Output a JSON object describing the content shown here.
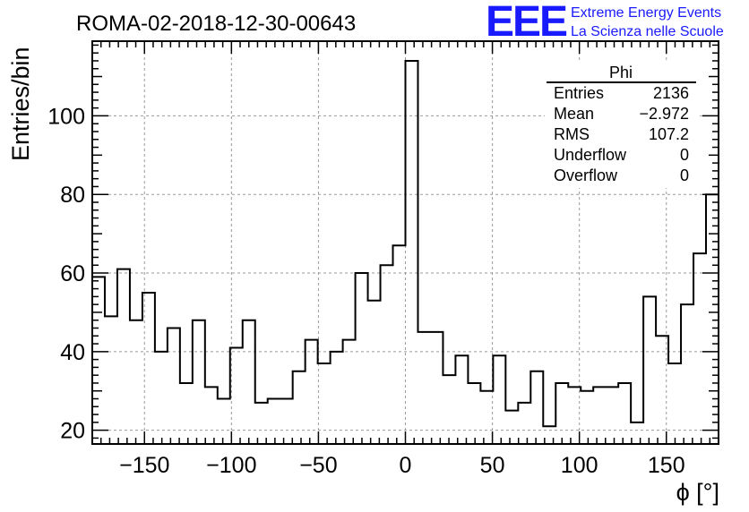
{
  "header": {
    "run_title": "ROMA-02-2018-12-30-00643",
    "logo_text": "EEE",
    "logo_line1": "Extreme Energy Events",
    "logo_line2": "La Scienza nelle Scuole",
    "brand_color": "#1a1aff"
  },
  "stats": {
    "title": "Phi",
    "rows": [
      {
        "label": "Entries",
        "value": "2136"
      },
      {
        "label": "Mean",
        "value": "−2.972"
      },
      {
        "label": "RMS",
        "value": "107.2"
      },
      {
        "label": "Underflow",
        "value": "0"
      },
      {
        "label": "Overflow",
        "value": "0"
      }
    ]
  },
  "chart_data": {
    "type": "histogram",
    "title": "ROMA-02-2018-12-30-00643",
    "xlabel": "ϕ [°]",
    "ylabel": "Entries/bin",
    "xlim": [
      -180,
      180
    ],
    "ylim": [
      16.5,
      119
    ],
    "bin_width": 7.2,
    "bin_edges_start": -180,
    "values": [
      59,
      49,
      61,
      48,
      55,
      40,
      46,
      32,
      48,
      31,
      28,
      41,
      48,
      27,
      28,
      28,
      35,
      43,
      37,
      40,
      43,
      60,
      53,
      62,
      67,
      114,
      45,
      45,
      34,
      39,
      32,
      30,
      39,
      25,
      27,
      35,
      21,
      32,
      31,
      30,
      31,
      31,
      32,
      22,
      54,
      44,
      37,
      52,
      65,
      80
    ],
    "x_ticks": [
      -150,
      -100,
      -50,
      0,
      50,
      100,
      150
    ],
    "x_tick_labels": [
      "−150",
      "−100",
      "−50",
      "0",
      "50",
      "100",
      "150"
    ],
    "y_ticks": [
      20,
      40,
      60,
      80,
      100
    ],
    "y_tick_labels": [
      "20",
      "40",
      "60",
      "80",
      "100"
    ],
    "grid": true,
    "legend_position": "top-right"
  }
}
